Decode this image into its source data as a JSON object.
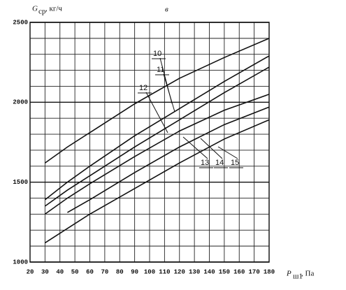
{
  "chart_data": {
    "type": "line",
    "title": "в",
    "y_label": {
      "symbol": "G",
      "subscript": "ср",
      "unit": ", кг/ч"
    },
    "x_label": {
      "symbol": "P",
      "subscript": "ш1",
      "unit": ", Па"
    },
    "x": [
      30,
      45,
      60,
      90,
      120,
      150,
      180
    ],
    "xlim": [
      20,
      180
    ],
    "xticks": [
      20,
      30,
      40,
      50,
      60,
      70,
      80,
      90,
      100,
      110,
      120,
      130,
      140,
      150,
      160,
      170,
      180
    ],
    "ylim": [
      1000,
      2500
    ],
    "yticks": [
      1000,
      1500,
      2000,
      2500
    ],
    "ygrid": [
      1100,
      1200,
      1300,
      1400,
      1600,
      1700,
      1800,
      1900,
      2100,
      2200,
      2300,
      2400
    ],
    "grid": true,
    "color": "#111111",
    "series": [
      {
        "name": "10",
        "values": [
          1620,
          1720,
          1810,
          1990,
          2150,
          2280,
          2400
        ]
      },
      {
        "name": "11",
        "values": [
          1390,
          1500,
          1600,
          1790,
          1960,
          2130,
          2290
        ]
      },
      {
        "name": "12",
        "values": [
          1350,
          1450,
          1540,
          1720,
          1890,
          2060,
          2220
        ]
      },
      {
        "name": "13",
        "values": [
          1300,
          1400,
          1490,
          1660,
          1820,
          1950,
          2050
        ]
      },
      {
        "name": "14",
        "values": [
          null,
          1310,
          1390,
          1560,
          1720,
          1860,
          1970
        ]
      },
      {
        "name": "15",
        "values": [
          1120,
          1210,
          1300,
          1460,
          1620,
          1770,
          1890
        ]
      }
    ]
  }
}
